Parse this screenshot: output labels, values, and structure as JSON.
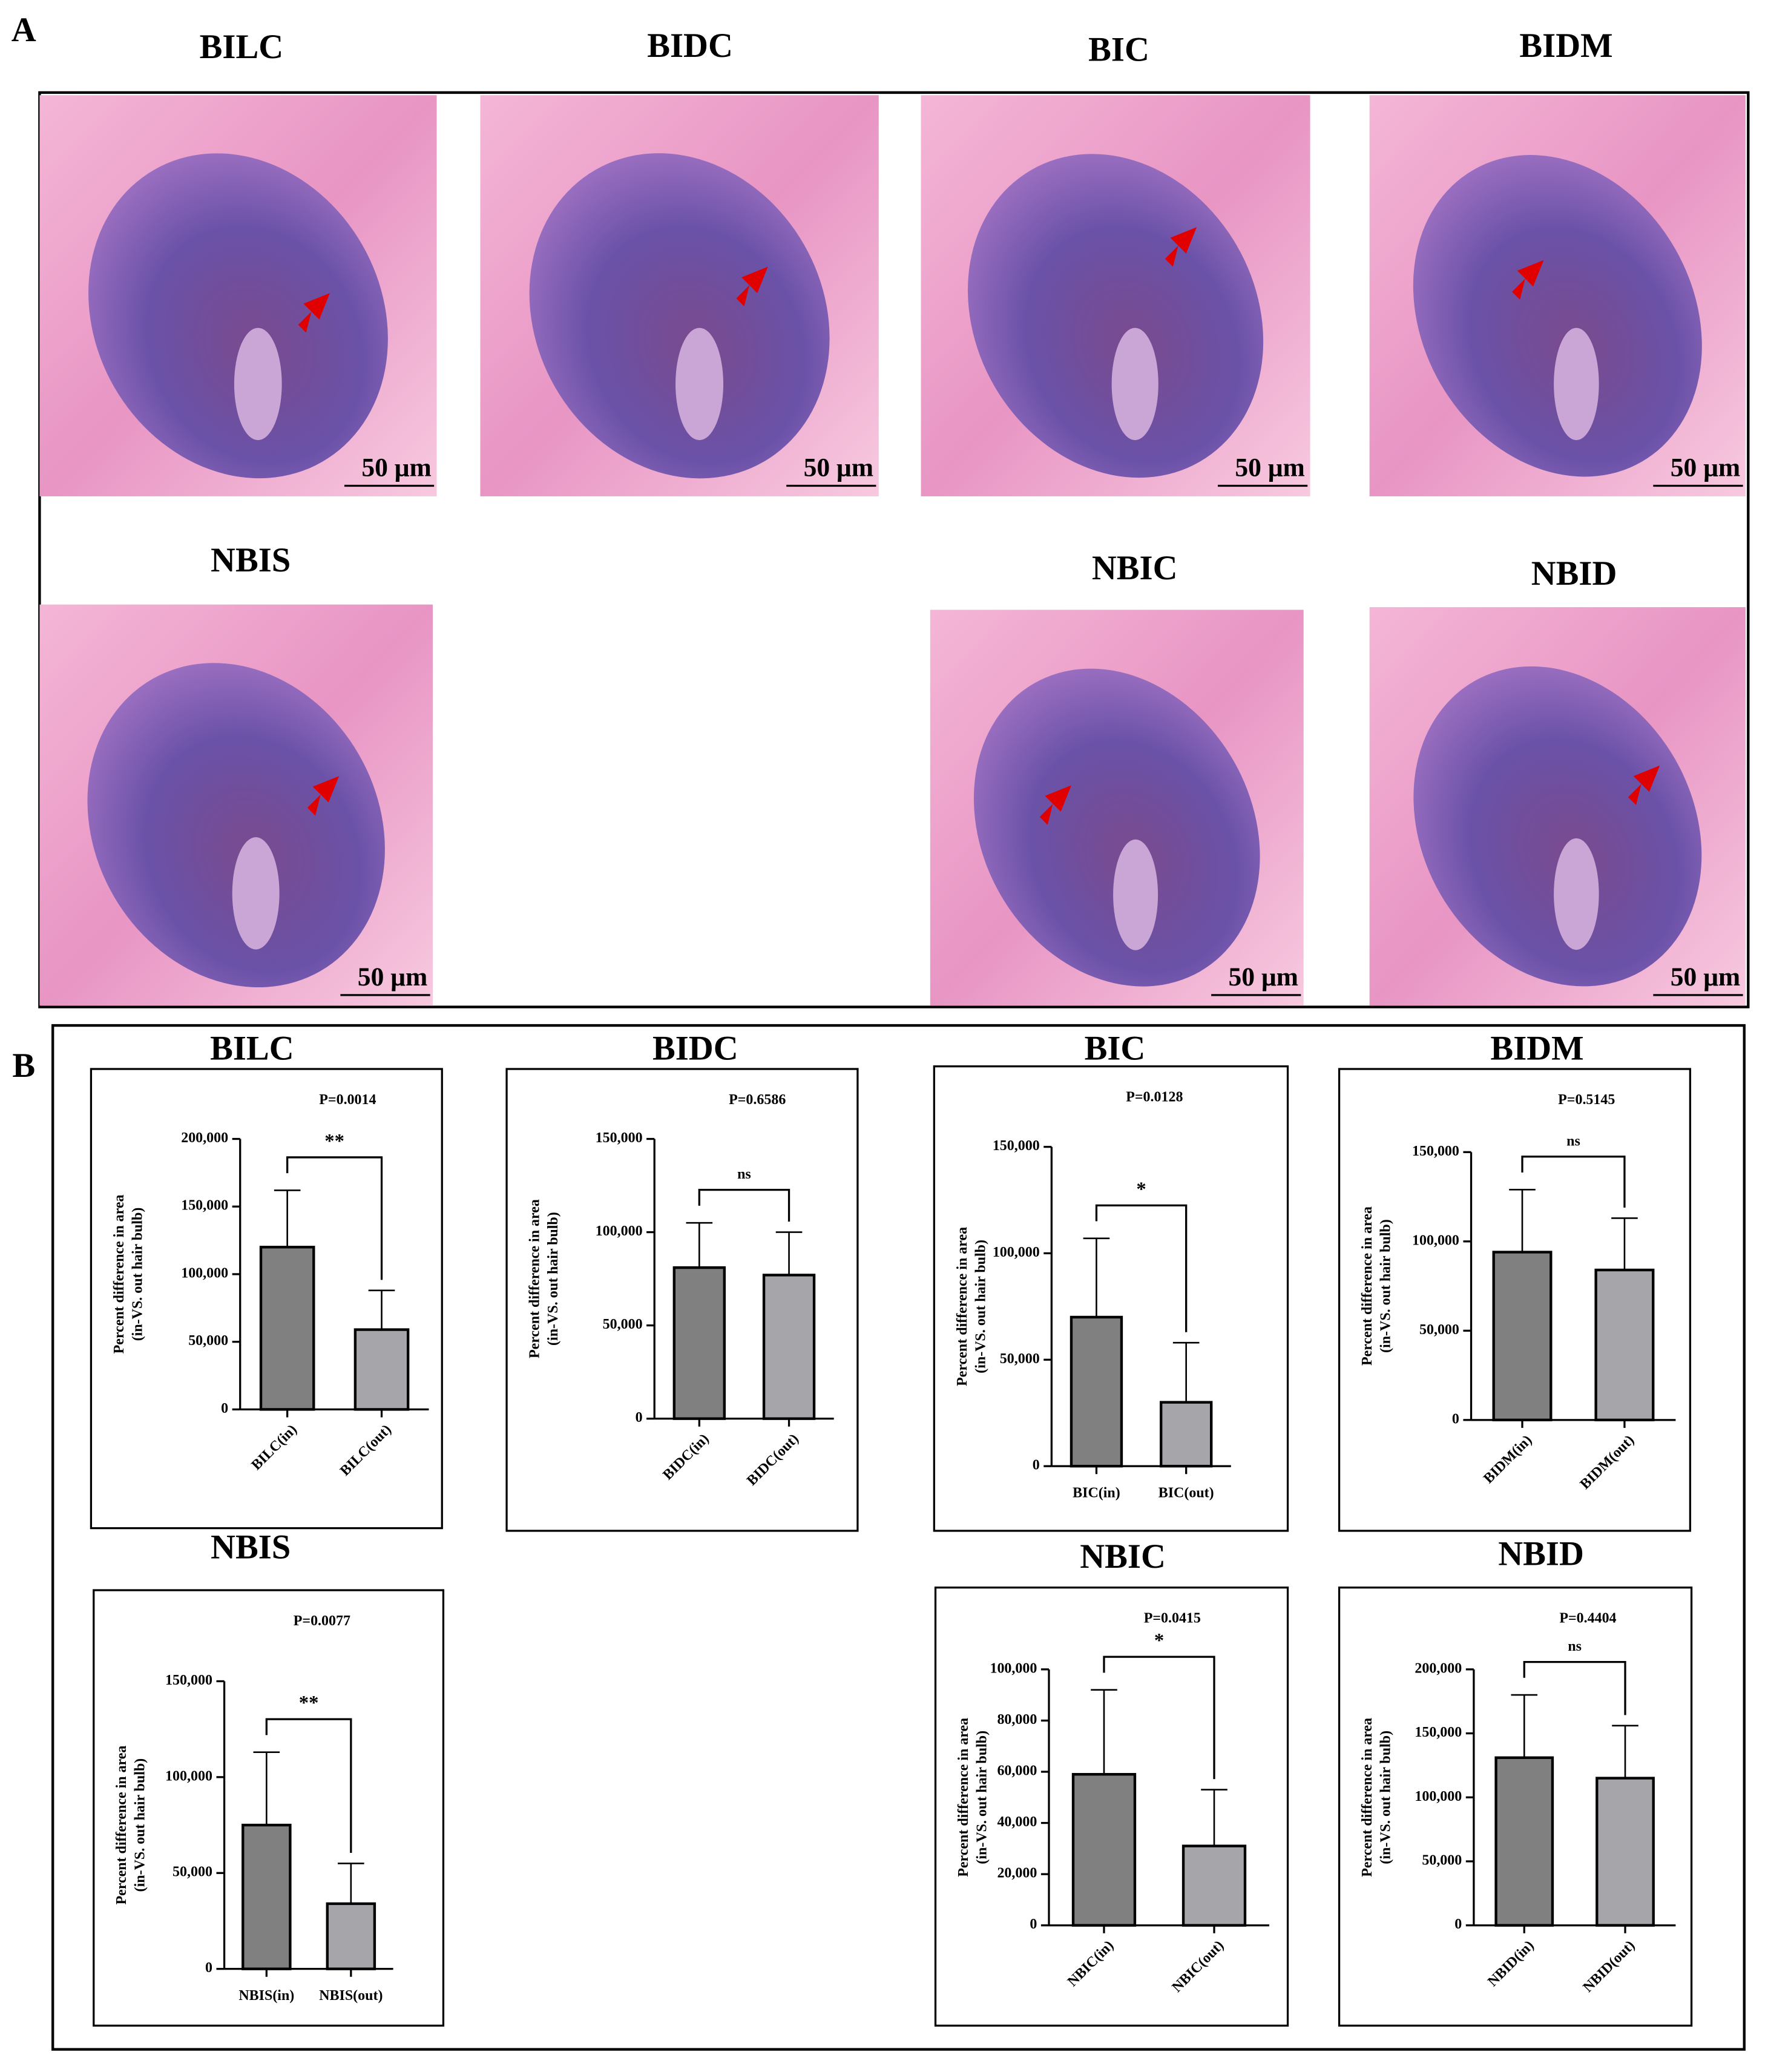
{
  "panel_labels": [
    "A",
    "B"
  ],
  "panel_a": {
    "images": [
      {
        "label": "BILC",
        "scale_bar": "50 μm"
      },
      {
        "label": "BIDC",
        "scale_bar": "50 μm"
      },
      {
        "label": "BIC",
        "scale_bar": "50 μm"
      },
      {
        "label": "BIDM",
        "scale_bar": "50 μm"
      },
      {
        "label": "NBIS",
        "scale_bar": "50 μm"
      },
      {
        "label": "NBIC",
        "scale_bar": "50 μm"
      },
      {
        "label": "NBID",
        "scale_bar": "50 μm"
      }
    ]
  },
  "chart_data": [
    {
      "type": "bar",
      "title": "BILC",
      "p_value": "P=0.0014",
      "significance": "**",
      "ylabel": [
        "Percent difference in area",
        "(in-VS. out hair bulb)"
      ],
      "categories": [
        "BILC(in)",
        "BILC(out)"
      ],
      "values": [
        120000,
        59000
      ],
      "errors": [
        42000,
        29000
      ],
      "colors": [
        "#808080",
        "#a6a6aa"
      ],
      "rotate_labels": true,
      "ylim": [
        0,
        200000
      ],
      "yticks": [
        0,
        {
          "value": 50000,
          "label": "50,000"
        },
        {
          "value": 100000,
          "label": "100,000"
        },
        {
          "value": 150000,
          "label": "150,000"
        },
        {
          "value": 200000,
          "label": "200,000"
        }
      ]
    },
    {
      "type": "bar",
      "title": "BIDC",
      "p_value": "P=0.6586",
      "significance": "ns",
      "ylabel": [
        "Percent difference in area",
        "(in-VS. out hair bulb)"
      ],
      "categories": [
        "BIDC(in)",
        "BIDC(out)"
      ],
      "values": [
        81000,
        77000
      ],
      "errors": [
        24000,
        23000
      ],
      "colors": [
        "#808080",
        "#a6a6aa"
      ],
      "rotate_labels": true,
      "ylim": [
        0,
        150000
      ],
      "yticks": [
        0,
        {
          "value": 50000,
          "label": "50,000"
        },
        {
          "value": 100000,
          "label": "100,000"
        },
        {
          "value": 150000,
          "label": "150,000"
        }
      ]
    },
    {
      "type": "bar",
      "title": "BIC",
      "p_value": "P=0.0128",
      "significance": "*",
      "ylabel": [
        "Percent difference in area",
        "(in-VS. out hair bulb)"
      ],
      "categories": [
        "BIC(in)",
        "BIC(out)"
      ],
      "values": [
        70000,
        30000
      ],
      "errors": [
        37000,
        28000
      ],
      "colors": [
        "#808080",
        "#a6a6aa"
      ],
      "rotate_labels": false,
      "ylim": [
        0,
        150000
      ],
      "yticks": [
        0,
        {
          "value": 50000,
          "label": "50,000"
        },
        {
          "value": 100000,
          "label": "100,000"
        },
        {
          "value": 150000,
          "label": "150,000"
        }
      ]
    },
    {
      "type": "bar",
      "title": "BIDM",
      "p_value": "P=0.5145",
      "significance": "ns",
      "ylabel": [
        "Percent difference in area",
        "(in-VS. out hair bulb)"
      ],
      "categories": [
        "BIDM(in)",
        "BIDM(out)"
      ],
      "values": [
        94000,
        84000
      ],
      "errors": [
        35000,
        29000
      ],
      "colors": [
        "#808080",
        "#a6a6aa"
      ],
      "rotate_labels": true,
      "ylim": [
        0,
        150000
      ],
      "yticks": [
        0,
        {
          "value": 50000,
          "label": "50,000"
        },
        {
          "value": 100000,
          "label": "100,000"
        },
        {
          "value": 150000,
          "label": "150,000"
        }
      ]
    },
    {
      "type": "bar",
      "title": "NBIS",
      "p_value": "P=0.0077",
      "significance": "**",
      "ylabel": [
        "Percent difference in area",
        "(in-VS. out hair bulb)"
      ],
      "categories": [
        "NBIS(in)",
        "NBIS(out)"
      ],
      "values": [
        75000,
        34000
      ],
      "errors": [
        38000,
        21000
      ],
      "colors": [
        "#808080",
        "#a6a6aa"
      ],
      "rotate_labels": false,
      "ylim": [
        0,
        150000
      ],
      "yticks": [
        0,
        {
          "value": 50000,
          "label": "50,000"
        },
        {
          "value": 100000,
          "label": "100,000"
        },
        {
          "value": 150000,
          "label": "150,000"
        }
      ]
    },
    {
      "type": "bar",
      "title": "NBIC",
      "p_value": "P=0.0415",
      "significance": "*",
      "ylabel": [
        "Percent difference in area",
        "(in-VS. out hair bulb)"
      ],
      "categories": [
        "NBIC(in)",
        "NBIC(out)"
      ],
      "values": [
        59000,
        31000
      ],
      "errors": [
        33000,
        22000
      ],
      "colors": [
        "#808080",
        "#a6a6aa"
      ],
      "rotate_labels": true,
      "ylim": [
        0,
        100000
      ],
      "yticks": [
        0,
        {
          "value": 20000,
          "label": "20,000"
        },
        {
          "value": 40000,
          "label": "40,000"
        },
        {
          "value": 60000,
          "label": "60,000"
        },
        {
          "value": 80000,
          "label": "80,000"
        },
        {
          "value": 100000,
          "label": "100,000"
        }
      ]
    },
    {
      "type": "bar",
      "title": "NBID",
      "p_value": "P=0.4404",
      "significance": "ns",
      "ylabel": [
        "Percent difference in area",
        "(in-VS. out hair bulb)"
      ],
      "categories": [
        "NBID(in)",
        "NBID(out)"
      ],
      "values": [
        131000,
        115000
      ],
      "errors": [
        49000,
        41000
      ],
      "colors": [
        "#808080",
        "#a6a6aa"
      ],
      "rotate_labels": true,
      "ylim": [
        0,
        200000
      ],
      "yticks": [
        0,
        {
          "value": 50000,
          "label": "50,000"
        },
        {
          "value": 100000,
          "label": "100,000"
        },
        {
          "value": 150000,
          "label": "150,000"
        },
        {
          "value": 200000,
          "label": "200,000"
        }
      ]
    }
  ]
}
